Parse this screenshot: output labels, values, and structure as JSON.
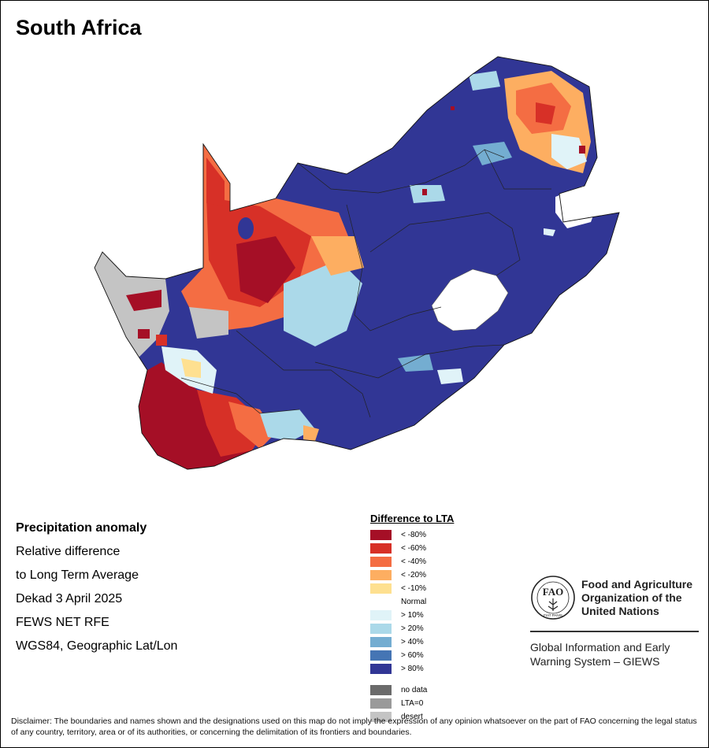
{
  "title": "South Africa",
  "info": {
    "heading": "Precipitation anomaly",
    "line1": "Relative difference",
    "line2": "to Long Term Average",
    "line3": "Dekad 3 April 2025",
    "line4": "FEWS NET RFE",
    "line5": "WGS84, Geographic Lat/Lon"
  },
  "legend": {
    "title": "Difference to LTA",
    "items": [
      {
        "label": "< -80%",
        "color": "#a50f26"
      },
      {
        "label": "< -60%",
        "color": "#d73027"
      },
      {
        "label": "< -40%",
        "color": "#f46d43"
      },
      {
        "label": "< -20%",
        "color": "#fdae61"
      },
      {
        "label": "< -10%",
        "color": "#fee090"
      },
      {
        "label": "Normal",
        "color": "#ffffff"
      },
      {
        "label": "> 10%",
        "color": "#e0f3f8"
      },
      {
        "label": "> 20%",
        "color": "#abd9e9"
      },
      {
        "label": "> 40%",
        "color": "#74add1"
      },
      {
        "label": "> 60%",
        "color": "#4575b4"
      },
      {
        "label": "> 80%",
        "color": "#313695"
      }
    ],
    "extra": [
      {
        "label": "no data",
        "color": "#6b6b6b"
      },
      {
        "label": "LTA=0",
        "color": "#9a9a9a"
      },
      {
        "label": "desert",
        "color": "#c4c4c4"
      }
    ]
  },
  "org": {
    "line1": "Food and Agriculture",
    "line2": "Organization of the",
    "line3": "United Nations",
    "giews1": "Global Information and Early",
    "giews2": "Warning System – GIEWS",
    "logo_text": "FAO",
    "logo_motto": "FIAT PANIS"
  },
  "disclaimer": "Disclaimer: The boundaries and names shown and the designations used on this map do not imply the expression of any opinion whatsoever on the part of FAO concerning the legal status of any country, territory, area or of its authorities, or concerning the delimitation of its frontiers and boundaries."
}
